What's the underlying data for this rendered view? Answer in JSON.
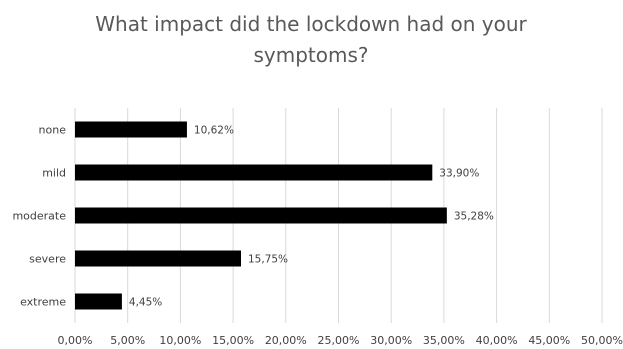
{
  "chart_data": {
    "type": "bar",
    "orientation": "horizontal",
    "title": "What impact did the lockdown had on your symptoms?",
    "title_lines": [
      "What impact did the lockdown had on your",
      "symptoms?"
    ],
    "categories": [
      "none",
      "mild",
      "moderate",
      "severe",
      "extreme"
    ],
    "values": [
      10.62,
      33.9,
      35.28,
      15.75,
      4.45
    ],
    "data_labels": [
      "10,62%",
      "33,90%",
      "35,28%",
      "15,75%",
      "4,45%"
    ],
    "xlim": [
      0,
      50
    ],
    "x_ticks": [
      0,
      5,
      10,
      15,
      20,
      25,
      30,
      35,
      40,
      45,
      50
    ],
    "x_tick_labels": [
      "0,00%",
      "5,00%",
      "10,00%",
      "15,00%",
      "20,00%",
      "25,00%",
      "30,00%",
      "35,00%",
      "40,00%",
      "45,00%",
      "50,00%"
    ],
    "xlabel": "",
    "ylabel": "",
    "grid": "vertical",
    "legend": "none",
    "bar_color": "#000000",
    "grid_color": "#d9d9d9"
  }
}
